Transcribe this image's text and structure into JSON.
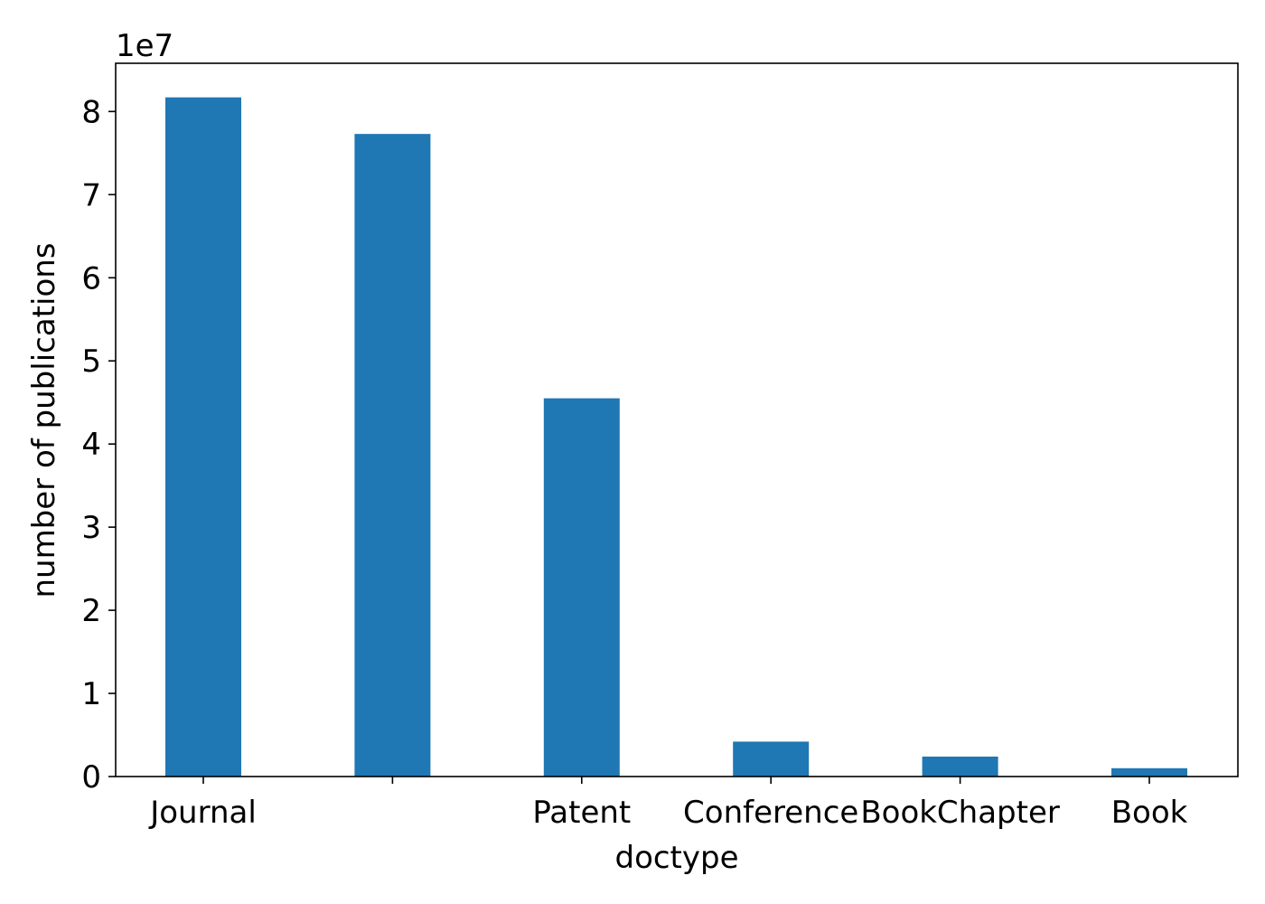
{
  "chart_data": {
    "type": "bar",
    "categories": [
      "Journal",
      "",
      "Patent",
      "Conference",
      "BookChapter",
      "Book"
    ],
    "values": [
      81700000,
      77300000,
      45500000,
      4200000,
      2400000,
      1000000
    ],
    "xlabel": "doctype",
    "ylabel": "number of publications",
    "offset_label": "1e7",
    "yticks": [
      0,
      10000000,
      20000000,
      30000000,
      40000000,
      50000000,
      60000000,
      70000000,
      80000000
    ],
    "ytick_labels": [
      "0",
      "1",
      "2",
      "3",
      "4",
      "5",
      "6",
      "7",
      "8"
    ],
    "ylim": [
      0,
      85800000
    ],
    "grid": false,
    "bar_color": "#1f77b4"
  }
}
